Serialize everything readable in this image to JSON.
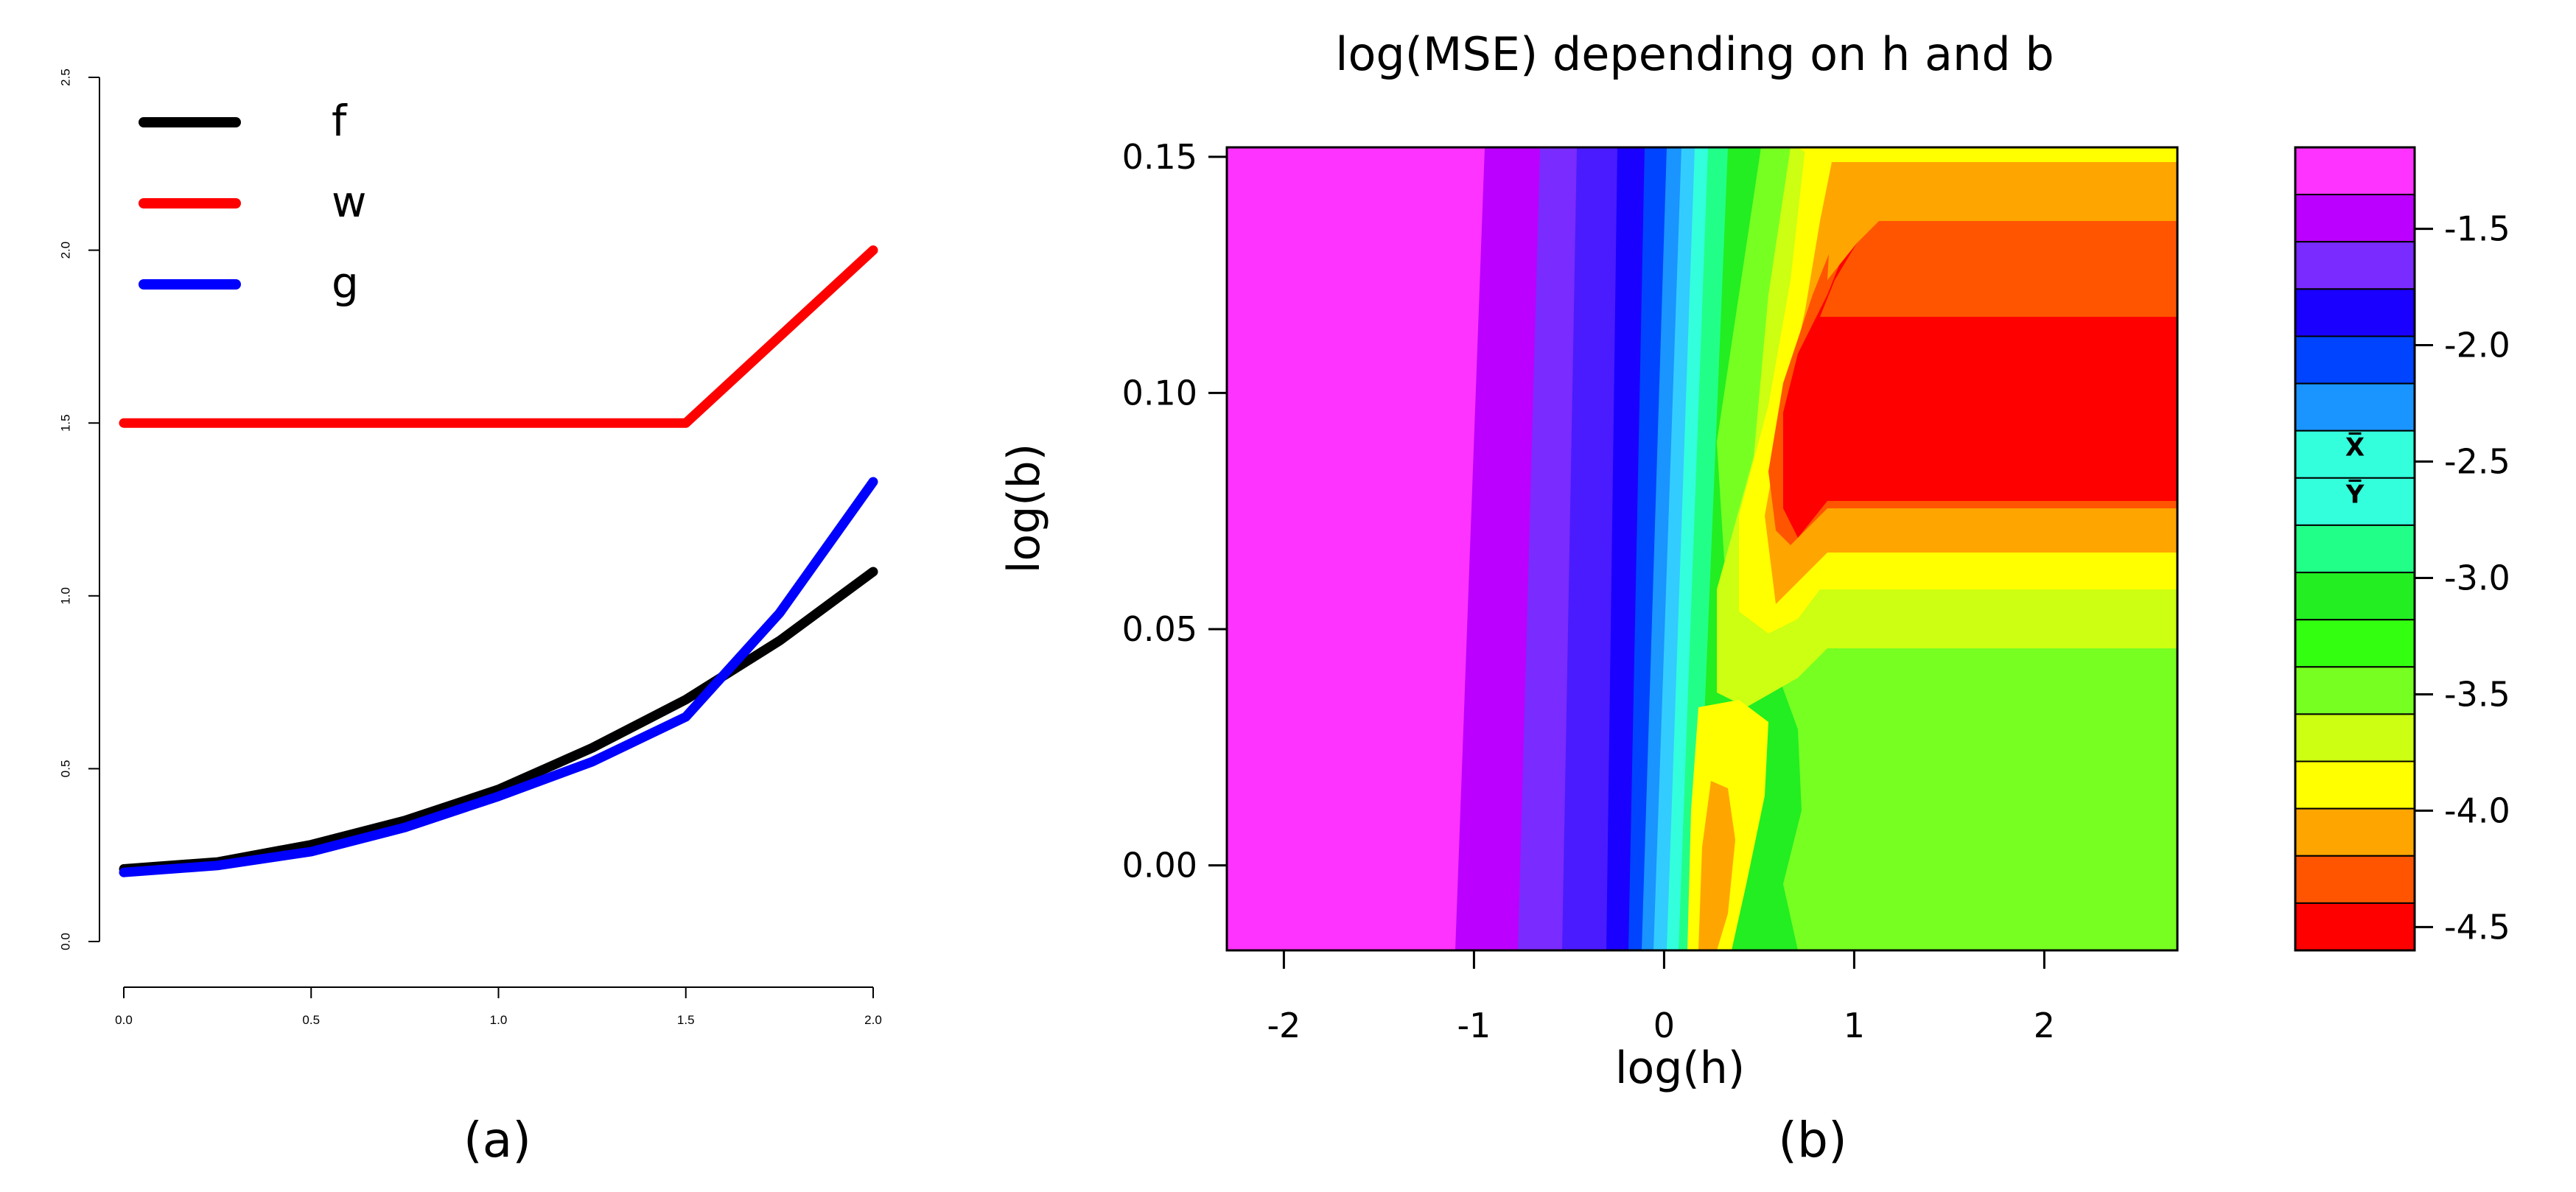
{
  "chart_data": [
    {
      "type": "line",
      "panel_label": "(a)",
      "title": "",
      "xlabel": "",
      "ylabel": "",
      "xlim": [
        0,
        2
      ],
      "ylim": [
        0,
        2.5
      ],
      "x_ticks": [
        "0.0",
        "0.5",
        "1.0",
        "1.5",
        "2.0"
      ],
      "y_ticks": [
        "0.0",
        "0.5",
        "1.0",
        "1.5",
        "2.0",
        "2.5"
      ],
      "legend_position": "top-left",
      "series": [
        {
          "name": "f",
          "color": "#000000",
          "x": [
            0,
            0.25,
            0.5,
            0.75,
            1.0,
            1.25,
            1.5,
            1.75,
            2.0
          ],
          "y": [
            0.21,
            0.23,
            0.28,
            0.35,
            0.44,
            0.56,
            0.7,
            0.87,
            1.07
          ]
        },
        {
          "name": "w",
          "color": "#ff0000",
          "x": [
            0,
            1.5,
            2.0
          ],
          "y": [
            1.5,
            1.5,
            2.0
          ]
        },
        {
          "name": "g",
          "color": "#0000ff",
          "x": [
            0,
            0.25,
            0.5,
            0.75,
            1.0,
            1.25,
            1.5,
            1.75,
            2.0
          ],
          "y": [
            0.2,
            0.22,
            0.26,
            0.33,
            0.42,
            0.52,
            0.65,
            0.95,
            1.33
          ]
        }
      ]
    },
    {
      "type": "heatmap",
      "panel_label": "(b)",
      "title": "log(MSE) depending on h and b",
      "xlabel": "log(h)",
      "ylabel": "log(b)",
      "xlim": [
        -2.3,
        2.7
      ],
      "ylim": [
        -0.018,
        0.152
      ],
      "x_ticks": [
        "-2",
        "-1",
        "0",
        "1",
        "2"
      ],
      "y_ticks": [
        "0.00",
        "0.05",
        "0.10",
        "0.15"
      ],
      "colorbar_ticks": [
        "-1.5",
        "-2.0",
        "-2.5",
        "-3.0",
        "-3.5",
        "-4.0",
        "-4.5"
      ],
      "colorbar_levels": [
        -1.15,
        -1.25,
        -1.5,
        -1.75,
        -2.0,
        -2.25,
        -2.5,
        -2.75,
        -3.0,
        -3.25,
        -3.5,
        -3.75,
        -4.0,
        -4.25,
        -4.5
      ],
      "colorbar_colors": [
        "#ff33ff",
        "#bb00ff",
        "#7a2bff",
        "#1a00ff",
        "#0044ff",
        "#1a94ff",
        "#33ffdd",
        "#33ffdd",
        "#22ff88",
        "#22ee22",
        "#33ff11",
        "#77ff22",
        "#ccff11",
        "#ffff00",
        "#ffa500",
        "#ff5500",
        "#ff0000"
      ],
      "annotations": [
        "X̅",
        "Y̅"
      ]
    }
  ]
}
